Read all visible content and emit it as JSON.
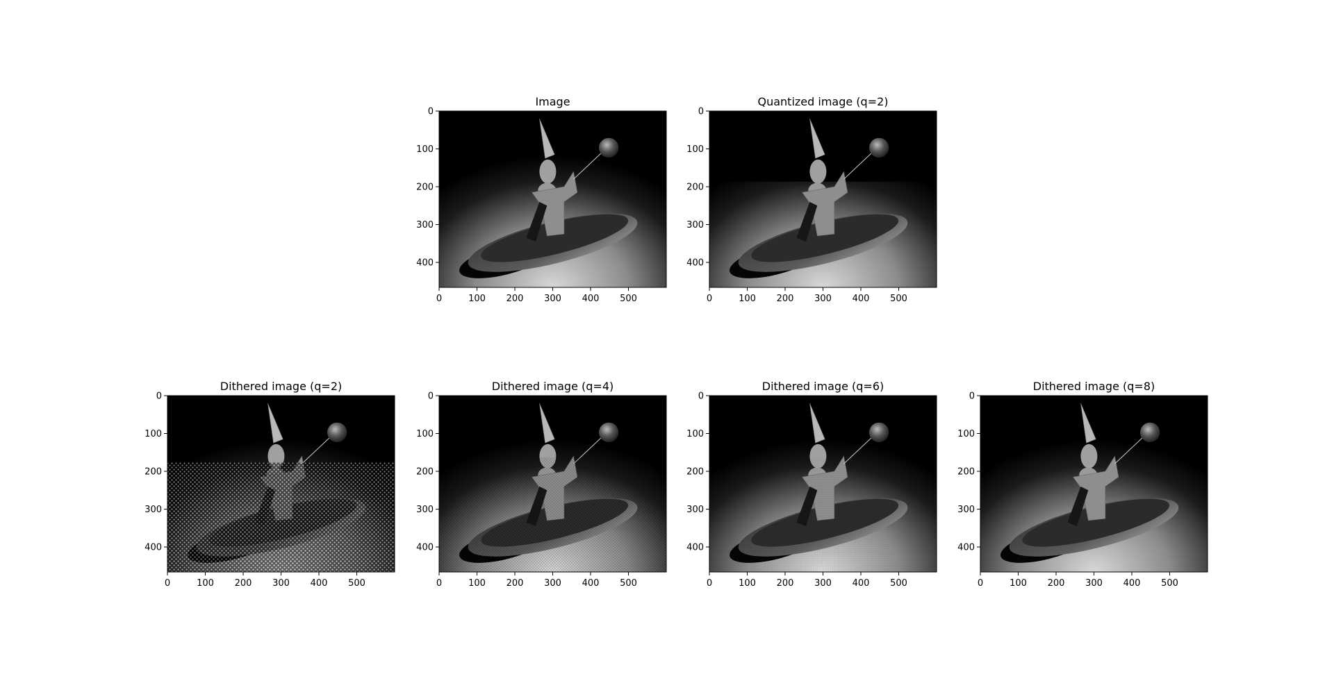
{
  "chart_data": [
    {
      "type": "image",
      "title": "Image",
      "xticks": [
        "0",
        "100",
        "200",
        "300",
        "400",
        "500"
      ],
      "yticks": [
        "0",
        "100",
        "200",
        "300",
        "400"
      ],
      "xlim": [
        0,
        600
      ],
      "ylim": [
        466,
        0
      ],
      "rendering": "smooth"
    },
    {
      "type": "image",
      "title": "Quantized image (q=2)",
      "xticks": [
        "0",
        "100",
        "200",
        "300",
        "400",
        "500"
      ],
      "yticks": [
        "0",
        "100",
        "200",
        "300",
        "400"
      ],
      "xlim": [
        0,
        600
      ],
      "ylim": [
        466,
        0
      ],
      "rendering": "quantized"
    },
    {
      "type": "image",
      "title": "Dithered image (q=2)",
      "xticks": [
        "0",
        "100",
        "200",
        "300",
        "400",
        "500"
      ],
      "yticks": [
        "0",
        "100",
        "200",
        "300",
        "400"
      ],
      "xlim": [
        0,
        600
      ],
      "ylim": [
        466,
        0
      ],
      "rendering": "dithered-coarse"
    },
    {
      "type": "image",
      "title": "Dithered image (q=4)",
      "xticks": [
        "0",
        "100",
        "200",
        "300",
        "400",
        "500"
      ],
      "yticks": [
        "0",
        "100",
        "200",
        "300",
        "400"
      ],
      "xlim": [
        0,
        600
      ],
      "ylim": [
        466,
        0
      ],
      "rendering": "dithered-medium"
    },
    {
      "type": "image",
      "title": "Dithered image (q=6)",
      "xticks": [
        "0",
        "100",
        "200",
        "300",
        "400",
        "500"
      ],
      "yticks": [
        "0",
        "100",
        "200",
        "300",
        "400"
      ],
      "xlim": [
        0,
        600
      ],
      "ylim": [
        466,
        0
      ],
      "rendering": "dithered-fine"
    },
    {
      "type": "image",
      "title": "Dithered image (q=8)",
      "xticks": [
        "0",
        "100",
        "200",
        "300",
        "400",
        "500"
      ],
      "yticks": [
        "0",
        "100",
        "200",
        "300",
        "400"
      ],
      "xlim": [
        0,
        600
      ],
      "ylim": [
        466,
        0
      ],
      "rendering": "smooth"
    }
  ]
}
